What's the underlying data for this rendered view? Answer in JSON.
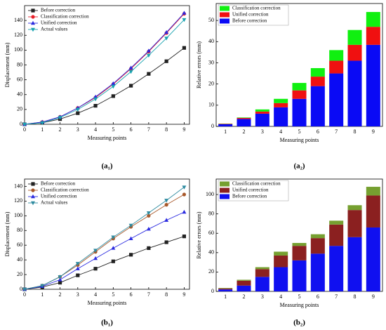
{
  "chart_data": [
    {
      "type": "line",
      "label": "(a₁)",
      "xlabel": "Measuring points",
      "ylabel": "Displacement (mm)",
      "x": [
        0,
        1,
        2,
        3,
        4,
        5,
        6,
        7,
        8,
        9
      ],
      "xlim": [
        0,
        9.3
      ],
      "xticks": [
        0,
        1,
        2,
        3,
        4,
        5,
        6,
        7,
        8,
        9
      ],
      "ylim": [
        0,
        160
      ],
      "yticks": [
        0,
        20,
        40,
        60,
        80,
        100,
        120,
        140
      ],
      "legend": "upper left",
      "series": [
        {
          "name": "Before correction",
          "color": "#222222",
          "marker": "square",
          "values": [
            0,
            2,
            7,
            15,
            25,
            38,
            52,
            68,
            85,
            103
          ]
        },
        {
          "name": "Classification correction",
          "color": "#e8202a",
          "marker": "circle",
          "values": [
            0,
            3,
            10,
            22,
            36,
            54,
            75,
            98,
            123,
            149
          ]
        },
        {
          "name": "Unified correction",
          "color": "#2a2ae0",
          "marker": "triangle-up",
          "values": [
            0,
            3,
            10,
            22,
            37,
            55,
            76,
            99,
            124,
            150
          ]
        },
        {
          "name": "Actual values",
          "color": "#19a3b0",
          "marker": "triangle-down",
          "values": [
            0,
            2,
            9,
            20,
            34,
            51,
            71,
            93,
            116,
            141
          ]
        }
      ]
    },
    {
      "type": "stacked-bar",
      "label": "(a₂)",
      "xlabel": "Measuring points",
      "ylabel": "Relative errors (mm)",
      "categories": [
        "1",
        "2",
        "3",
        "4",
        "5",
        "6",
        "7",
        "8",
        "9"
      ],
      "ylim": [
        0,
        58
      ],
      "yticks": [
        0,
        10,
        20,
        30,
        40,
        50
      ],
      "legend": "upper left",
      "series": [
        {
          "name": "Before correction",
          "color": "#0a0af5",
          "values": [
            1,
            3.5,
            6,
            9,
            13,
            19,
            25,
            31,
            38.5
          ]
        },
        {
          "name": "Unified correction",
          "color": "#f01010",
          "values": [
            0.2,
            0.5,
            1,
            2,
            4,
            4.5,
            6,
            7.5,
            8.5
          ]
        },
        {
          "name": "Classification correction",
          "color": "#10f010",
          "values": [
            0.1,
            0.2,
            1,
            2,
            3.5,
            4,
            5,
            7,
            7
          ]
        }
      ]
    },
    {
      "type": "line",
      "label": "(b₁)",
      "xlabel": "Measuring points",
      "ylabel": "Displacement (mm)",
      "x": [
        0,
        1,
        2,
        3,
        4,
        5,
        6,
        7,
        8,
        9
      ],
      "xlim": [
        0,
        9.3
      ],
      "xticks": [
        0,
        1,
        2,
        3,
        4,
        5,
        6,
        7,
        8,
        9
      ],
      "ylim": [
        0,
        150
      ],
      "yticks": [
        0,
        20,
        40,
        60,
        80,
        100,
        120,
        140
      ],
      "legend": "upper left",
      "series": [
        {
          "name": "Before correction",
          "color": "#222222",
          "marker": "square",
          "values": [
            0,
            3,
            9,
            19,
            28,
            38,
            47,
            56,
            64,
            72
          ]
        },
        {
          "name": "Classification correction",
          "color": "#a8582a",
          "marker": "circle",
          "values": [
            0,
            5,
            17,
            33,
            51,
            69,
            85,
            100,
            115,
            129
          ]
        },
        {
          "name": "Unified correction",
          "color": "#2a2ae0",
          "marker": "triangle-up",
          "values": [
            0,
            4,
            13,
            28,
            42,
            56,
            69,
            82,
            94,
            105
          ]
        },
        {
          "name": "Actual values",
          "color": "#2e8ba0",
          "marker": "triangle-down",
          "values": [
            0,
            5,
            17,
            35,
            53,
            71,
            87,
            104,
            121,
            139
          ]
        }
      ]
    },
    {
      "type": "stacked-bar",
      "label": "(b₂)",
      "xlabel": "Measuring points",
      "ylabel": "Relative errors (mm)",
      "categories": [
        "1",
        "2",
        "3",
        "4",
        "5",
        "6",
        "7",
        "8",
        "9"
      ],
      "ylim": [
        0,
        116
      ],
      "yticks": [
        0,
        20,
        40,
        60,
        80,
        100
      ],
      "legend": "upper left",
      "series": [
        {
          "name": "Before correction",
          "color": "#1010f0",
          "values": [
            2,
            6,
            15,
            25,
            32,
            39,
            47,
            56,
            66
          ]
        },
        {
          "name": "Unified correction",
          "color": "#8b2020",
          "values": [
            1,
            5,
            8,
            12,
            15,
            16,
            22,
            28,
            33
          ]
        },
        {
          "name": "Classification correction",
          "color": "#76a030",
          "values": [
            0.5,
            1,
            2,
            4,
            3,
            4,
            4,
            5,
            9
          ]
        }
      ]
    }
  ]
}
